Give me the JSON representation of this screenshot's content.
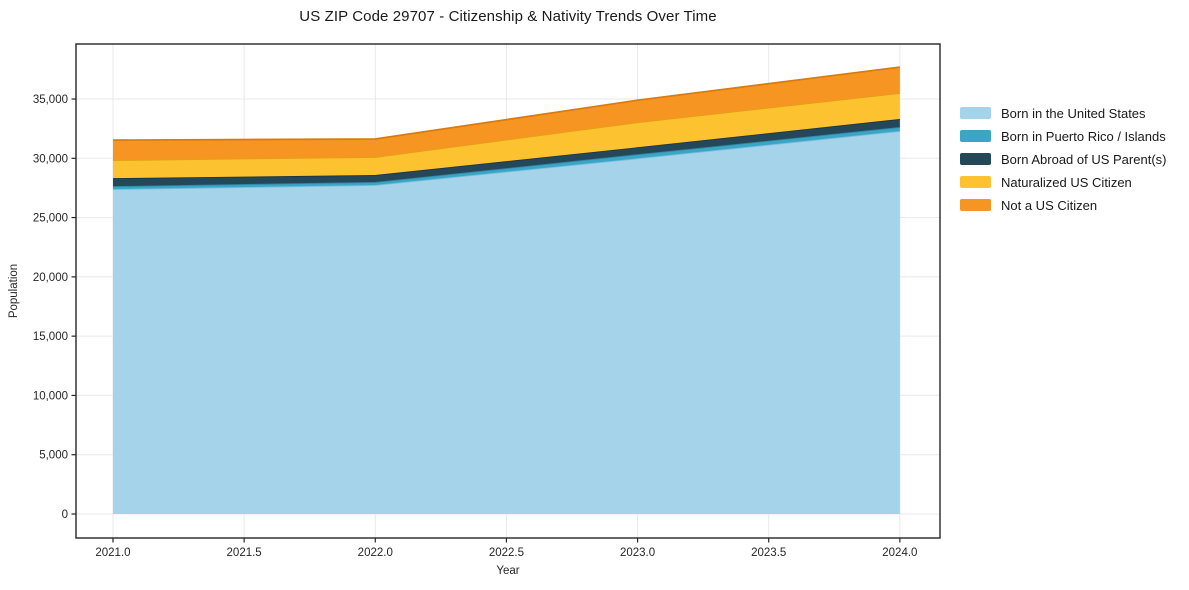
{
  "title": "US ZIP Code 29707 - Citizenship & Nativity Trends Over Time",
  "colors": {
    "background": "#ffffff",
    "axis": "#262626",
    "grid": "#e8e8e8",
    "text": "#1a1a1a"
  },
  "chart_data": {
    "type": "area",
    "stacked": true,
    "title": "US ZIP Code 29707 - Citizenship & Nativity Trends Over Time",
    "xlabel": "Year",
    "ylabel": "Population",
    "grid": true,
    "legend_position": "right",
    "x": [
      2021,
      2022,
      2023,
      2024
    ],
    "xlim": [
      2020.859,
      2024.153
    ],
    "ylim": [
      -2024,
      39640
    ],
    "xticks": [
      2021.0,
      2021.5,
      2022.0,
      2022.5,
      2023.0,
      2023.5,
      2024.0
    ],
    "xtick_labels": [
      "2021.0",
      "2021.5",
      "2022.0",
      "2022.5",
      "2023.0",
      "2023.5",
      "2024.0"
    ],
    "yticks": [
      0,
      5000,
      10000,
      15000,
      20000,
      25000,
      30000,
      35000
    ],
    "ytick_labels": [
      "0",
      "5,000",
      "10,000",
      "15,000",
      "20,000",
      "25,000",
      "30,000",
      "35,000"
    ],
    "series": [
      {
        "name": "Born in the United States",
        "fill": "#a5d3e9",
        "line": "#7bbcdd",
        "values": [
          27400,
          27750,
          30000,
          32300
        ]
      },
      {
        "name": "Born in Puerto Rico / Islands",
        "fill": "#3aa5c5",
        "line": "#2d87a3",
        "values": [
          250,
          250,
          340,
          340
        ]
      },
      {
        "name": "Born Abroad of US Parent(s)",
        "fill": "#25475a",
        "line": "#1a3443",
        "values": [
          675,
          590,
          590,
          675
        ]
      },
      {
        "name": "Naturalized US Citizen",
        "fill": "#fdc22f",
        "line": "#e0a114",
        "values": [
          1520,
          1520,
          2110,
          2190
        ]
      },
      {
        "name": "Not a US Citizen",
        "fill": "#f79522",
        "line": "#d97a0e",
        "values": [
          1690,
          1520,
          1860,
          2190
        ]
      }
    ]
  }
}
